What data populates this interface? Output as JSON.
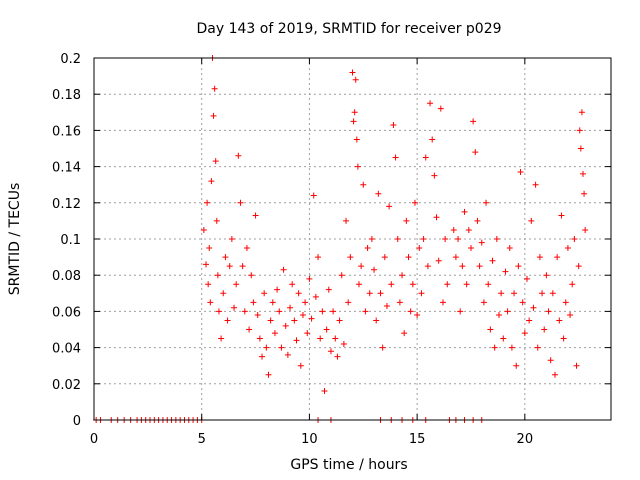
{
  "chart_data": {
    "type": "scatter",
    "title": "Day 143 of 2019, SRMTID for receiver p029",
    "xlabel": "GPS time / hours",
    "ylabel": "SRMTID / TECUs",
    "xlim": [
      0,
      24
    ],
    "ylim": [
      0,
      0.2
    ],
    "xticks": [
      0,
      5,
      10,
      15,
      20
    ],
    "yticks": [
      0,
      0.02,
      0.04,
      0.06,
      0.08,
      0.1,
      0.12,
      0.14,
      0.16,
      0.18,
      0.2
    ],
    "grid": true,
    "marker": "+",
    "color": "#ff0000",
    "series": [
      {
        "name": "SRMTID",
        "points": [
          [
            0.1,
            0
          ],
          [
            0.3,
            0
          ],
          [
            0.8,
            0
          ],
          [
            1.1,
            0
          ],
          [
            1.4,
            0
          ],
          [
            1.7,
            0
          ],
          [
            2.0,
            0
          ],
          [
            2.2,
            0
          ],
          [
            2.4,
            0
          ],
          [
            2.6,
            0
          ],
          [
            2.8,
            0
          ],
          [
            3.0,
            0
          ],
          [
            3.2,
            0
          ],
          [
            3.4,
            0
          ],
          [
            3.6,
            0
          ],
          [
            3.8,
            0
          ],
          [
            4.0,
            0
          ],
          [
            4.2,
            0
          ],
          [
            4.4,
            0
          ],
          [
            4.6,
            0
          ],
          [
            4.8,
            0
          ],
          [
            5.0,
            0
          ],
          [
            10.4,
            0
          ],
          [
            11.0,
            0
          ],
          [
            13.3,
            0
          ],
          [
            13.8,
            0
          ],
          [
            14.3,
            0
          ],
          [
            14.8,
            0
          ],
          [
            15.4,
            0
          ],
          [
            16.5,
            0
          ],
          [
            16.8,
            0
          ],
          [
            17.2,
            0
          ],
          [
            17.6,
            0
          ],
          [
            18.0,
            0
          ],
          [
            5.1,
            0.105
          ],
          [
            5.2,
            0.086
          ],
          [
            5.25,
            0.12
          ],
          [
            5.3,
            0.075
          ],
          [
            5.35,
            0.095
          ],
          [
            5.4,
            0.065
          ],
          [
            5.45,
            0.132
          ],
          [
            5.5,
            0.2
          ],
          [
            5.55,
            0.168
          ],
          [
            5.6,
            0.183
          ],
          [
            5.65,
            0.143
          ],
          [
            5.7,
            0.11
          ],
          [
            5.75,
            0.08
          ],
          [
            5.8,
            0.06
          ],
          [
            5.9,
            0.045
          ],
          [
            6.0,
            0.07
          ],
          [
            6.1,
            0.09
          ],
          [
            6.2,
            0.055
          ],
          [
            6.3,
            0.085
          ],
          [
            6.4,
            0.1
          ],
          [
            6.5,
            0.062
          ],
          [
            6.6,
            0.075
          ],
          [
            6.7,
            0.146
          ],
          [
            6.8,
            0.12
          ],
          [
            6.9,
            0.085
          ],
          [
            7.0,
            0.06
          ],
          [
            7.1,
            0.095
          ],
          [
            7.2,
            0.05
          ],
          [
            7.3,
            0.08
          ],
          [
            7.4,
            0.065
          ],
          [
            7.5,
            0.113
          ],
          [
            7.6,
            0.058
          ],
          [
            7.7,
            0.045
          ],
          [
            7.8,
            0.035
          ],
          [
            7.9,
            0.07
          ],
          [
            8.0,
            0.04
          ],
          [
            8.1,
            0.025
          ],
          [
            8.2,
            0.055
          ],
          [
            8.3,
            0.065
          ],
          [
            8.4,
            0.048
          ],
          [
            8.5,
            0.072
          ],
          [
            8.6,
            0.06
          ],
          [
            8.7,
            0.04
          ],
          [
            8.8,
            0.083
          ],
          [
            8.9,
            0.052
          ],
          [
            9.0,
            0.036
          ],
          [
            9.1,
            0.062
          ],
          [
            9.2,
            0.075
          ],
          [
            9.3,
            0.055
          ],
          [
            9.4,
            0.044
          ],
          [
            9.5,
            0.07
          ],
          [
            9.6,
            0.03
          ],
          [
            9.7,
            0.058
          ],
          [
            9.8,
            0.065
          ],
          [
            9.9,
            0.048
          ],
          [
            10.0,
            0.078
          ],
          [
            10.1,
            0.056
          ],
          [
            10.2,
            0.124
          ],
          [
            10.3,
            0.068
          ],
          [
            10.4,
            0.09
          ],
          [
            10.5,
            0.045
          ],
          [
            10.6,
            0.06
          ],
          [
            10.7,
            0.016
          ],
          [
            10.8,
            0.05
          ],
          [
            10.9,
            0.072
          ],
          [
            11.0,
            0.038
          ],
          [
            11.1,
            0.06
          ],
          [
            11.2,
            0.045
          ],
          [
            11.3,
            0.035
          ],
          [
            11.4,
            0.055
          ],
          [
            11.5,
            0.08
          ],
          [
            11.6,
            0.042
          ],
          [
            11.7,
            0.11
          ],
          [
            11.8,
            0.065
          ],
          [
            11.9,
            0.09
          ],
          [
            12.0,
            0.192
          ],
          [
            12.05,
            0.165
          ],
          [
            12.1,
            0.17
          ],
          [
            12.15,
            0.188
          ],
          [
            12.2,
            0.155
          ],
          [
            12.25,
            0.14
          ],
          [
            12.3,
            0.075
          ],
          [
            12.4,
            0.085
          ],
          [
            12.5,
            0.13
          ],
          [
            12.6,
            0.06
          ],
          [
            12.7,
            0.095
          ],
          [
            12.8,
            0.07
          ],
          [
            12.9,
            0.1
          ],
          [
            13.0,
            0.083
          ],
          [
            13.1,
            0.055
          ],
          [
            13.2,
            0.125
          ],
          [
            13.3,
            0.07
          ],
          [
            13.4,
            0.04
          ],
          [
            13.5,
            0.09
          ],
          [
            13.6,
            0.063
          ],
          [
            13.7,
            0.118
          ],
          [
            13.8,
            0.075
          ],
          [
            13.9,
            0.163
          ],
          [
            14.0,
            0.145
          ],
          [
            14.1,
            0.1
          ],
          [
            14.2,
            0.065
          ],
          [
            14.3,
            0.08
          ],
          [
            14.4,
            0.048
          ],
          [
            14.5,
            0.11
          ],
          [
            14.6,
            0.09
          ],
          [
            14.7,
            0.06
          ],
          [
            14.8,
            0.075
          ],
          [
            14.9,
            0.12
          ],
          [
            15.0,
            0.058
          ],
          [
            15.1,
            0.095
          ],
          [
            15.2,
            0.07
          ],
          [
            15.3,
            0.1
          ],
          [
            15.4,
            0.145
          ],
          [
            15.5,
            0.085
          ],
          [
            15.6,
            0.175
          ],
          [
            15.7,
            0.155
          ],
          [
            15.8,
            0.135
          ],
          [
            15.9,
            0.112
          ],
          [
            16.0,
            0.088
          ],
          [
            16.1,
            0.172
          ],
          [
            16.2,
            0.065
          ],
          [
            16.3,
            0.1
          ],
          [
            16.4,
            0.075
          ],
          [
            16.7,
            0.105
          ],
          [
            16.8,
            0.09
          ],
          [
            16.9,
            0.1
          ],
          [
            17.0,
            0.06
          ],
          [
            17.1,
            0.085
          ],
          [
            17.2,
            0.115
          ],
          [
            17.3,
            0.075
          ],
          [
            17.4,
            0.105
          ],
          [
            17.5,
            0.095
          ],
          [
            17.6,
            0.165
          ],
          [
            17.7,
            0.148
          ],
          [
            17.8,
            0.11
          ],
          [
            17.9,
            0.085
          ],
          [
            18.0,
            0.098
          ],
          [
            18.1,
            0.065
          ],
          [
            18.2,
            0.12
          ],
          [
            18.3,
            0.075
          ],
          [
            18.4,
            0.05
          ],
          [
            18.5,
            0.088
          ],
          [
            18.6,
            0.04
          ],
          [
            18.7,
            0.1
          ],
          [
            18.8,
            0.058
          ],
          [
            18.9,
            0.07
          ],
          [
            19.0,
            0.045
          ],
          [
            19.1,
            0.082
          ],
          [
            19.2,
            0.06
          ],
          [
            19.3,
            0.095
          ],
          [
            19.4,
            0.04
          ],
          [
            19.5,
            0.07
          ],
          [
            19.6,
            0.03
          ],
          [
            19.7,
            0.085
          ],
          [
            19.8,
            0.137
          ],
          [
            19.9,
            0.065
          ],
          [
            20.0,
            0.048
          ],
          [
            20.1,
            0.078
          ],
          [
            20.2,
            0.055
          ],
          [
            20.3,
            0.11
          ],
          [
            20.4,
            0.062
          ],
          [
            20.5,
            0.13
          ],
          [
            20.6,
            0.04
          ],
          [
            20.7,
            0.09
          ],
          [
            20.8,
            0.07
          ],
          [
            20.9,
            0.05
          ],
          [
            21.0,
            0.08
          ],
          [
            21.1,
            0.06
          ],
          [
            21.2,
            0.033
          ],
          [
            21.3,
            0.07
          ],
          [
            21.4,
            0.025
          ],
          [
            21.5,
            0.09
          ],
          [
            21.6,
            0.055
          ],
          [
            21.7,
            0.113
          ],
          [
            21.8,
            0.045
          ],
          [
            21.9,
            0.065
          ],
          [
            22.0,
            0.095
          ],
          [
            22.1,
            0.058
          ],
          [
            22.2,
            0.075
          ],
          [
            22.3,
            0.1
          ],
          [
            22.4,
            0.03
          ],
          [
            22.5,
            0.085
          ],
          [
            22.55,
            0.16
          ],
          [
            22.6,
            0.15
          ],
          [
            22.65,
            0.17
          ],
          [
            22.7,
            0.136
          ],
          [
            22.75,
            0.125
          ],
          [
            22.8,
            0.105
          ]
        ]
      }
    ]
  }
}
